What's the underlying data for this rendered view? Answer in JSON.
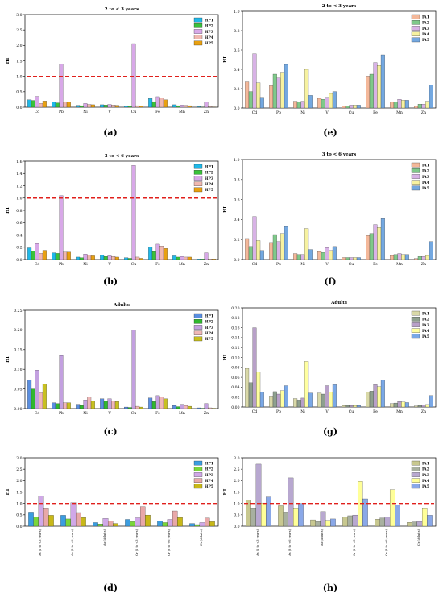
{
  "figure": {
    "labels": [
      "(a)",
      "(b)",
      "(c)",
      "(d)",
      "(e)",
      "(f)",
      "(g)",
      "(h)"
    ]
  },
  "colors": {
    "HP": [
      "#1fb8e8",
      "#39c23a",
      "#d8a8e8",
      "#f0b8b0",
      "#e8a010"
    ],
    "HP_c": [
      "#5a8ee0",
      "#2fb82f",
      "#c3a0e0",
      "#f0b8b8",
      "#c8c020"
    ],
    "HP_d": [
      "#3b9de0",
      "#7ad63a",
      "#d0a8e8",
      "#e8a8a8",
      "#c8b818"
    ],
    "IA": [
      "#f4b89a",
      "#7fc98a",
      "#d8b2e6",
      "#f7f2a0",
      "#74a8e0"
    ],
    "IA_g": [
      "#d9d9a8",
      "#8ea08e",
      "#b8a0c8",
      "#ffffa0",
      "#7aa8e6"
    ],
    "IA_h": [
      "#c8c890",
      "#a8b0a0",
      "#b8a8d0",
      "#ffff98",
      "#8aa8e8"
    ],
    "refline": "#e0201c"
  },
  "chart_data": [
    {
      "id": "a",
      "type": "bar",
      "title": "2 to < 3 years",
      "ylabel": "HI",
      "ylim": [
        0,
        3.0
      ],
      "yticks": [
        "0.0",
        "0.5",
        "1.0",
        "1.5",
        "2.0",
        "2.5",
        "3.0"
      ],
      "reference_line": 1.0,
      "categories": [
        "Cd",
        "Pb",
        "Ni",
        "V",
        "Cu",
        "Fe",
        "Mn",
        "Zn"
      ],
      "palette": "HP",
      "series": [
        {
          "name": "HP1",
          "values": [
            0.24,
            0.17,
            0.06,
            0.08,
            0.03,
            0.28,
            0.08,
            0.02
          ]
        },
        {
          "name": "HP2",
          "values": [
            0.22,
            0.14,
            0.05,
            0.07,
            0.03,
            0.18,
            0.05,
            0.01
          ]
        },
        {
          "name": "HP3",
          "values": [
            0.35,
            1.4,
            0.12,
            0.09,
            2.06,
            0.34,
            0.07,
            0.16
          ]
        },
        {
          "name": "HP4",
          "values": [
            0.12,
            0.16,
            0.09,
            0.07,
            0.05,
            0.3,
            0.06,
            0.02
          ]
        },
        {
          "name": "HP5",
          "values": [
            0.2,
            0.16,
            0.08,
            0.06,
            0.03,
            0.24,
            0.05,
            0.01
          ]
        }
      ]
    },
    {
      "id": "b",
      "type": "bar",
      "title": "3 to < 6 years",
      "ylabel": "HI",
      "ylim": [
        0,
        1.6
      ],
      "yticks": [
        "0.0",
        "0.2",
        "0.4",
        "0.6",
        "0.8",
        "1.0",
        "1.2",
        "1.4",
        "1.6"
      ],
      "reference_line": 1.0,
      "categories": [
        "Cd",
        "Pb",
        "Ni",
        "V",
        "Cu",
        "Fe",
        "Mn",
        "Zn"
      ],
      "palette": "HP",
      "series": [
        {
          "name": "HP1",
          "values": [
            0.19,
            0.11,
            0.04,
            0.07,
            0.03,
            0.2,
            0.06,
            0.01
          ]
        },
        {
          "name": "HP2",
          "values": [
            0.14,
            0.1,
            0.03,
            0.05,
            0.02,
            0.13,
            0.04,
            0.01
          ]
        },
        {
          "name": "HP3",
          "values": [
            0.26,
            1.04,
            0.09,
            0.06,
            1.53,
            0.25,
            0.05,
            0.11
          ]
        },
        {
          "name": "HP4",
          "values": [
            0.1,
            0.12,
            0.07,
            0.05,
            0.04,
            0.22,
            0.04,
            0.01
          ]
        },
        {
          "name": "HP5",
          "values": [
            0.15,
            0.12,
            0.06,
            0.04,
            0.02,
            0.18,
            0.04,
            0.01
          ]
        }
      ]
    },
    {
      "id": "c",
      "type": "bar",
      "title": "Adults",
      "ylabel": "HI",
      "ylim": [
        0,
        0.25
      ],
      "yticks": [
        "0.00",
        "0.05",
        "0.10",
        "0.15",
        "0.20",
        "0.25"
      ],
      "categories": [
        "Cd",
        "Pb",
        "Ni",
        "V",
        "Cu",
        "Fe",
        "Mn",
        "Zn"
      ],
      "palette": "HP_c",
      "series": [
        {
          "name": "HP1",
          "values": [
            0.072,
            0.015,
            0.011,
            0.025,
            0.004,
            0.027,
            0.008,
            0.002
          ]
        },
        {
          "name": "HP2",
          "values": [
            0.05,
            0.013,
            0.008,
            0.02,
            0.003,
            0.018,
            0.005,
            0.001
          ]
        },
        {
          "name": "HP3",
          "values": [
            0.098,
            0.135,
            0.022,
            0.025,
            0.2,
            0.033,
            0.011,
            0.013
          ]
        },
        {
          "name": "HP4",
          "values": [
            0.04,
            0.015,
            0.03,
            0.02,
            0.006,
            0.03,
            0.008,
            0.002
          ]
        },
        {
          "name": "HP5",
          "values": [
            0.062,
            0.015,
            0.019,
            0.018,
            0.004,
            0.025,
            0.006,
            0.001
          ]
        }
      ]
    },
    {
      "id": "d",
      "type": "bar",
      "ylabel": "HI",
      "ylim": [
        0,
        3.0
      ],
      "yticks": [
        "0.0",
        "0.5",
        "1.0",
        "1.5",
        "2.0",
        "2.5",
        "3.0"
      ],
      "reference_line": 1.0,
      "categories": [
        "As (2 to <3 years)",
        "As (3 to <6 years)",
        "As (Adults)",
        "Cr (2 to <3 years)",
        "Cr (3 to <6 years)",
        "Cr (Adults)"
      ],
      "palette": "HP_d",
      "series": [
        {
          "name": "HP1",
          "values": [
            0.62,
            0.48,
            0.16,
            0.3,
            0.24,
            0.12
          ]
        },
        {
          "name": "HP2",
          "values": [
            0.4,
            0.32,
            0.1,
            0.2,
            0.16,
            0.07
          ]
        },
        {
          "name": "HP3",
          "values": [
            1.32,
            1.03,
            0.34,
            0.37,
            0.3,
            0.16
          ]
        },
        {
          "name": "HP4",
          "values": [
            0.8,
            0.6,
            0.22,
            0.86,
            0.67,
            0.36
          ]
        },
        {
          "name": "HP5",
          "values": [
            0.48,
            0.38,
            0.12,
            0.49,
            0.38,
            0.2
          ]
        }
      ]
    },
    {
      "id": "e",
      "type": "bar",
      "title": "2 to < 3 years",
      "ylabel": "HI",
      "ylim": [
        0,
        1.0
      ],
      "yticks": [
        "0.0",
        "0.2",
        "0.4",
        "0.6",
        "0.8",
        "1.0"
      ],
      "categories": [
        "Cd",
        "Pb",
        "Ni",
        "V",
        "Cu",
        "Fe",
        "Mn",
        "Zn"
      ],
      "palette": "IA",
      "series": [
        {
          "name": "IA1",
          "values": [
            0.27,
            0.23,
            0.07,
            0.1,
            0.02,
            0.33,
            0.06,
            0.02
          ]
        },
        {
          "name": "IA2",
          "values": [
            0.17,
            0.35,
            0.06,
            0.09,
            0.02,
            0.35,
            0.06,
            0.04
          ]
        },
        {
          "name": "IA3",
          "values": [
            0.56,
            0.31,
            0.07,
            0.11,
            0.03,
            0.47,
            0.09,
            0.04
          ]
        },
        {
          "name": "IA4",
          "values": [
            0.26,
            0.37,
            0.4,
            0.15,
            0.03,
            0.44,
            0.08,
            0.07
          ]
        },
        {
          "name": "IA5",
          "values": [
            0.11,
            0.45,
            0.13,
            0.17,
            0.03,
            0.55,
            0.08,
            0.24
          ]
        }
      ]
    },
    {
      "id": "f",
      "type": "bar",
      "title": "3 to < 6 years",
      "ylabel": "HI",
      "ylim": [
        0,
        1.0
      ],
      "yticks": [
        "0.0",
        "0.2",
        "0.4",
        "0.6",
        "0.8",
        "1.0"
      ],
      "categories": [
        "Cd",
        "Pb",
        "Ni",
        "V",
        "Cu",
        "Fe",
        "Mn",
        "Zn"
      ],
      "palette": "IA",
      "series": [
        {
          "name": "IA1",
          "values": [
            0.21,
            0.17,
            0.06,
            0.08,
            0.02,
            0.24,
            0.04,
            0.01
          ]
        },
        {
          "name": "IA2",
          "values": [
            0.13,
            0.25,
            0.05,
            0.07,
            0.02,
            0.26,
            0.05,
            0.03
          ]
        },
        {
          "name": "IA3",
          "values": [
            0.43,
            0.18,
            0.05,
            0.12,
            0.02,
            0.35,
            0.06,
            0.03
          ]
        },
        {
          "name": "IA4",
          "values": [
            0.19,
            0.26,
            0.31,
            0.09,
            0.02,
            0.32,
            0.05,
            0.04
          ]
        },
        {
          "name": "IA5",
          "values": [
            0.09,
            0.33,
            0.1,
            0.13,
            0.02,
            0.41,
            0.05,
            0.18
          ]
        }
      ]
    },
    {
      "id": "g",
      "type": "bar",
      "title": "Adults",
      "ylabel": "HI",
      "ylim": [
        0,
        0.2
      ],
      "yticks": [
        "0.00",
        "0.02",
        "0.04",
        "0.06",
        "0.08",
        "0.10",
        "0.12",
        "0.14",
        "0.16",
        "0.18",
        "0.20"
      ],
      "categories": [
        "Cd",
        "Pb",
        "Ni",
        "V",
        "Cu",
        "Fe",
        "Mn",
        "Zn"
      ],
      "palette": "IA_g",
      "series": [
        {
          "name": "IA1",
          "values": [
            0.078,
            0.022,
            0.017,
            0.028,
            0.003,
            0.03,
            0.007,
            0.002
          ]
        },
        {
          "name": "IA2",
          "values": [
            0.049,
            0.031,
            0.014,
            0.026,
            0.003,
            0.032,
            0.008,
            0.003
          ]
        },
        {
          "name": "IA3",
          "values": [
            0.16,
            0.026,
            0.018,
            0.043,
            0.003,
            0.045,
            0.011,
            0.004
          ]
        },
        {
          "name": "IA4",
          "values": [
            0.071,
            0.033,
            0.092,
            0.03,
            0.003,
            0.041,
            0.01,
            0.005
          ]
        },
        {
          "name": "IA5",
          "values": [
            0.03,
            0.043,
            0.028,
            0.045,
            0.003,
            0.054,
            0.009,
            0.023
          ]
        }
      ]
    },
    {
      "id": "h",
      "type": "bar",
      "ylabel": "HI",
      "ylim": [
        0,
        3.0
      ],
      "yticks": [
        "0.0",
        "0.5",
        "1.0",
        "1.5",
        "2.0",
        "2.5",
        "3.0"
      ],
      "reference_line": 1.0,
      "categories": [
        "As (2 to <3 years)",
        "As (3 to <6 years)",
        "As (Adults)",
        "Cr (2 to <3 years)",
        "Cr (3 to <6 years)",
        "Cr (Adults)"
      ],
      "palette": "IA_h",
      "series": [
        {
          "name": "IA1",
          "values": [
            1.16,
            0.9,
            0.28,
            0.4,
            0.31,
            0.17
          ]
        },
        {
          "name": "IA2",
          "values": [
            0.8,
            0.62,
            0.2,
            0.46,
            0.36,
            0.19
          ]
        },
        {
          "name": "IA3",
          "values": [
            2.72,
            2.12,
            0.64,
            0.49,
            0.4,
            0.21
          ]
        },
        {
          "name": "IA4",
          "values": [
            1.02,
            0.8,
            0.26,
            1.97,
            1.6,
            0.8
          ]
        },
        {
          "name": "IA5",
          "values": [
            1.28,
            1.0,
            0.32,
            1.2,
            0.94,
            0.48
          ]
        }
      ]
    }
  ]
}
